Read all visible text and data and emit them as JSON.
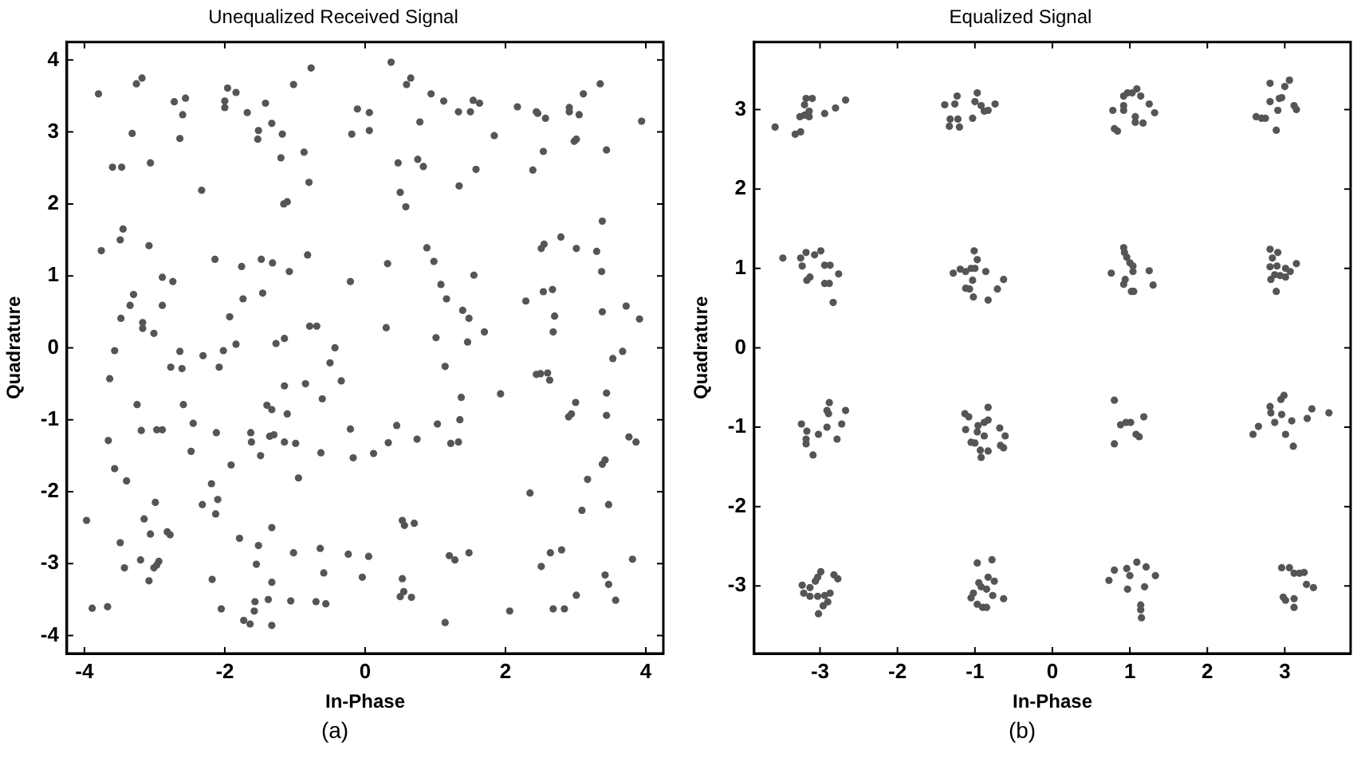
{
  "chart_data": [
    {
      "type": "scatter",
      "title": "Unequalized Received Signal",
      "xlabel": "In-Phase",
      "ylabel": "Quadrature",
      "annotations": [
        "(a)"
      ],
      "xlim": [
        -4.25,
        4.25
      ],
      "ylim": [
        -4.25,
        4.25
      ],
      "xticks": [
        -4,
        -2,
        0,
        2,
        4
      ],
      "yticks": [
        -4,
        -3,
        -2,
        -1,
        0,
        1,
        2,
        3,
        4
      ],
      "grid": false,
      "marker": "circle",
      "series": [
        {
          "color": "#555555",
          "x": [
            -3.8,
            -3.76,
            -3.6,
            -3.47,
            -3.49,
            -3.45,
            -3.48,
            -3.35,
            -3.3,
            -3.32,
            -3.26,
            -3.18,
            -3.17,
            -3.17,
            -3.06,
            -3.08,
            -3.01,
            -2.89,
            -2.89,
            -2.74,
            -2.72,
            -2.64,
            -2.6,
            -2.56,
            -2.33,
            -2.14,
            -2.0,
            -2.0,
            -1.96,
            -1.84,
            -1.93,
            -1.84,
            -1.76,
            -1.74,
            -1.68,
            -1.53,
            -1.52,
            -1.48,
            -1.46,
            -1.42,
            -1.33,
            -1.32,
            -1.27,
            -1.2,
            -1.18,
            -1.16,
            -1.11,
            -1.15,
            -1.08,
            -1.02,
            -0.87,
            -0.82,
            -0.8,
            -0.77,
            -0.79,
            -0.69,
            -0.43,
            -0.21,
            -0.19,
            -0.11,
            0.06,
            0.06,
            0.3,
            0.32,
            0.37,
            0.47,
            0.5,
            0.59,
            0.65,
            0.58,
            0.75,
            0.78,
            0.83,
            0.88,
            0.94,
            0.98,
            1.01,
            1.08,
            1.12,
            1.16,
            1.33,
            1.34,
            1.39,
            1.46,
            1.48,
            1.5,
            1.54,
            1.55,
            1.58,
            1.63,
            1.7,
            1.84,
            2.17,
            2.29,
            2.39,
            2.44,
            2.46,
            2.51,
            2.55,
            2.54,
            2.57,
            2.54,
            2.67,
            2.7,
            2.68,
            2.79,
            2.91,
            2.91,
            2.98,
            3.01,
            3.05,
            3.01,
            3.11,
            3.3,
            3.35,
            3.38,
            3.37,
            3.38,
            3.44,
            3.72,
            3.91,
            3.94,
            -3.57,
            -3.64,
            -2.64,
            -2.61,
            -2.77,
            -2.31,
            -2.08,
            -2.02,
            -3.25,
            -2.59,
            -3.19,
            -2.97,
            -2.89,
            -3.66,
            -3.57,
            -2.45,
            -2.48,
            -2.12,
            -1.91,
            -1.63,
            -1.62,
            -1.49,
            -1.4,
            -1.33,
            -1.36,
            -1.3,
            -1.15,
            -1.11,
            -1.15,
            -0.99,
            -0.85,
            -0.95,
            -0.61,
            -0.63,
            -0.5,
            -0.34,
            -0.21,
            -0.17,
            0.12,
            0.45,
            0.33,
            0.74,
            1.03,
            1.14,
            1.22,
            1.33,
            1.35,
            1.37,
            1.93,
            2.44,
            2.5,
            2.6,
            2.63,
            3.0,
            2.9,
            2.94,
            3.44,
            3.44,
            3.53,
            3.67,
            3.76,
            3.86,
            3.38,
            3.42,
            3.17,
            3.09,
            3.47,
            2.35,
            -3.97,
            -3.4,
            -3.49,
            -3.43,
            -3.89,
            -3.67,
            -3.15,
            -2.99,
            -3.2,
            -3.06,
            -3.08,
            -3.01,
            -2.97,
            -2.94,
            -2.82,
            -2.78,
            -2.32,
            -2.19,
            -2.1,
            -2.13,
            -2.18,
            -2.05,
            -1.79,
            -1.52,
            -1.55,
            -1.33,
            -1.57,
            -1.58,
            -1.73,
            -1.64,
            -1.38,
            -1.33,
            -1.33,
            -1.06,
            -1.02,
            -0.64,
            -0.59,
            -0.7,
            -0.56,
            -0.24,
            -0.04,
            0.05,
            0.53,
            0.56,
            0.7,
            0.53,
            0.55,
            0.5,
            0.66,
            1.2,
            1.28,
            1.48,
            1.14,
            2.06,
            2.51,
            2.64,
            2.8,
            2.68,
            2.84,
            3.01,
            3.42,
            3.47,
            3.57,
            3.81
          ],
          "values": [
            3.53,
            1.35,
            2.51,
            2.51,
            1.5,
            1.65,
            0.41,
            0.59,
            0.74,
            2.98,
            3.67,
            3.75,
            0.35,
            0.27,
            2.57,
            1.42,
            0.2,
            0.98,
            0.59,
            0.92,
            3.42,
            2.91,
            3.24,
            3.47,
            2.19,
            1.23,
            3.43,
            3.34,
            3.61,
            3.55,
            0.43,
            0.05,
            1.13,
            0.68,
            3.27,
            2.9,
            3.02,
            1.23,
            0.76,
            3.4,
            3.12,
            1.18,
            0.06,
            2.64,
            2.97,
            2.0,
            2.03,
            0.13,
            1.06,
            3.66,
            2.72,
            1.29,
            2.3,
            3.89,
            0.3,
            0.3,
            0.0,
            0.92,
            2.97,
            3.32,
            3.27,
            3.02,
            0.28,
            1.17,
            3.97,
            2.57,
            2.16,
            3.66,
            3.75,
            1.96,
            2.62,
            3.14,
            2.52,
            1.39,
            3.53,
            1.2,
            0.14,
            0.88,
            3.43,
            0.68,
            3.28,
            2.25,
            0.52,
            0.08,
            0.41,
            3.28,
            3.44,
            1.01,
            2.48,
            3.4,
            0.22,
            2.95,
            3.35,
            0.65,
            2.47,
            3.28,
            3.26,
            1.38,
            1.44,
            2.73,
            3.19,
            0.78,
            0.81,
            0.44,
            0.22,
            1.54,
            3.34,
            3.28,
            2.87,
            2.9,
            3.24,
            1.38,
            3.53,
            1.34,
            3.67,
            1.76,
            1.06,
            0.5,
            2.75,
            0.58,
            0.4,
            3.15,
            -0.04,
            -0.43,
            -0.05,
            -0.29,
            -0.27,
            -0.11,
            -0.27,
            -0.04,
            -0.79,
            -0.79,
            -1.15,
            -1.14,
            -1.14,
            -1.29,
            -1.68,
            -1.05,
            -1.44,
            -1.18,
            -1.63,
            -1.18,
            -1.31,
            -1.5,
            -0.8,
            -0.86,
            -1.23,
            -1.21,
            -0.53,
            -0.92,
            -1.31,
            -1.33,
            -0.5,
            -1.81,
            -0.71,
            -1.46,
            -0.21,
            -0.46,
            -1.13,
            -1.53,
            -1.47,
            -1.08,
            -1.32,
            -1.27,
            -1.06,
            -0.26,
            -1.33,
            -1.31,
            -1.0,
            -0.69,
            -0.64,
            -0.37,
            -0.36,
            -0.35,
            -0.45,
            -0.76,
            -0.96,
            -0.92,
            -0.63,
            -0.94,
            -0.15,
            -0.05,
            -1.24,
            -1.31,
            -1.62,
            -1.56,
            -1.83,
            -2.26,
            -2.18,
            -2.02,
            -2.4,
            -1.85,
            -2.71,
            -3.06,
            -3.62,
            -3.6,
            -2.38,
            -2.15,
            -2.95,
            -2.59,
            -3.24,
            -3.06,
            -3.02,
            -2.97,
            -2.56,
            -2.6,
            -2.18,
            -1.89,
            -2.11,
            -2.31,
            -3.22,
            -3.63,
            -2.65,
            -2.75,
            -3.01,
            -2.5,
            -3.53,
            -3.66,
            -3.79,
            -3.84,
            -3.5,
            -3.26,
            -3.86,
            -3.52,
            -2.85,
            -2.79,
            -3.13,
            -3.53,
            -3.56,
            -2.87,
            -3.19,
            -2.9,
            -2.4,
            -2.47,
            -2.44,
            -3.21,
            -3.39,
            -3.46,
            -3.47,
            -2.89,
            -2.95,
            -2.85,
            -3.82,
            -3.66,
            -3.04,
            -2.85,
            -2.81,
            -3.63,
            -3.63,
            -3.44,
            -3.16,
            -3.29,
            -3.51,
            -2.94
          ]
        }
      ]
    },
    {
      "type": "scatter",
      "title": "Equalized Signal",
      "xlabel": "In-Phase",
      "ylabel": "Quadrature",
      "annotations": [
        "(b)"
      ],
      "xlim": [
        -3.85,
        3.85
      ],
      "ylim": [
        -3.85,
        3.85
      ],
      "xticks": [
        -3,
        -2,
        -1,
        0,
        1,
        2,
        3
      ],
      "yticks": [
        -3,
        -2,
        -1,
        0,
        1,
        2,
        3
      ],
      "grid": false,
      "marker": "circle",
      "series": [
        {
          "color": "#555555",
          "x": [
            -3.58,
            -3.32,
            -3.25,
            -3.26,
            -3.2,
            -3.14,
            -3.2,
            -3.1,
            -3.18,
            -3.14,
            -2.94,
            -2.8,
            -2.67,
            -1.39,
            -1.33,
            -1.2,
            -1.32,
            -1.22,
            -1.26,
            -1.23,
            -1.03,
            -0.97,
            -1.0,
            -0.88,
            -0.83,
            -0.74,
            -0.92,
            0.8,
            0.84,
            0.78,
            0.92,
            0.92,
            0.97,
            1.09,
            1.03,
            1.14,
            1.25,
            1.32,
            1.07,
            1.07,
            1.17,
            0.92,
            2.63,
            2.7,
            2.75,
            2.81,
            2.81,
            2.89,
            2.93,
            2.96,
            2.91,
            3.0,
            3.06,
            3.12,
            3.15,
            -3.48,
            -3.25,
            -3.18,
            -3.07,
            -2.99,
            -3.23,
            -3.13,
            -3.17,
            -2.94,
            -2.87,
            -2.76,
            -2.94,
            -2.88,
            -2.83,
            -1.28,
            -1.19,
            -1.12,
            -1.01,
            -0.97,
            -1.05,
            -1.0,
            -0.86,
            -1.03,
            -1.12,
            -1.07,
            -1.02,
            -0.83,
            -0.71,
            -0.63,
            0.92,
            0.93,
            0.96,
            1.0,
            1.04,
            1.04,
            0.76,
            0.94,
            0.92,
            1.02,
            1.05,
            1.25,
            1.3,
            2.81,
            2.91,
            2.84,
            2.81,
            2.9,
            3.01,
            3.07,
            3.15,
            2.82,
            2.87,
            2.94,
            3.01,
            2.89,
            -3.24,
            -3.17,
            -3.18,
            -3.18,
            -3.09,
            -3.02,
            -2.91,
            -2.88,
            -2.91,
            -2.89,
            -2.67,
            -2.72,
            -2.78,
            -1.13,
            -1.08,
            -1.12,
            -0.97,
            -0.96,
            -0.88,
            -0.83,
            -0.83,
            -1.05,
            -1.0,
            -0.93,
            -0.92,
            -0.83,
            -0.68,
            -0.61,
            -0.67,
            -0.63,
            -0.88,
            0.8,
            0.8,
            0.88,
            0.95,
            1.01,
            1.08,
            1.12,
            1.18,
            2.59,
            2.66,
            2.81,
            2.82,
            2.87,
            2.96,
            2.99,
            2.95,
            3.01,
            3.09,
            3.11,
            3.29,
            3.35,
            3.57,
            -3.23,
            -3.21,
            -3.13,
            -3.06,
            -2.99,
            -3.03,
            -3.13,
            -3.03,
            -2.94,
            -2.87,
            -2.9,
            -2.96,
            -3.02,
            -2.82,
            -2.77,
            -0.97,
            -0.78,
            -0.83,
            -0.75,
            -0.95,
            -0.92,
            -0.85,
            -0.77,
            -1.02,
            -1.05,
            -0.97,
            -0.9,
            -0.85,
            -0.63,
            0.73,
            0.8,
            0.96,
            1.09,
            1.21,
            1.33,
            1.0,
            0.97,
            1.19,
            1.14,
            1.14,
            1.15,
            2.96,
            3.06,
            3.12,
            3.19,
            3.25,
            3.28,
            3.37,
            2.98,
            3.01,
            3.12,
            3.12
          ],
          "values": [
            2.78,
            2.69,
            2.72,
            2.91,
            2.93,
            2.98,
            3.06,
            3.14,
            3.14,
            2.91,
            2.95,
            3.02,
            3.12,
            3.06,
            2.79,
            2.78,
            2.88,
            2.88,
            3.07,
            3.17,
            2.89,
            3.21,
            3.1,
            2.98,
            2.99,
            3.07,
            3.05,
            2.76,
            2.73,
            2.99,
            2.99,
            3.17,
            3.21,
            3.26,
            3.21,
            3.17,
            3.07,
            2.96,
            2.91,
            2.84,
            2.83,
            3.05,
            2.91,
            2.89,
            2.89,
            3.1,
            3.33,
            2.74,
            3.14,
            3.15,
            2.99,
            3.29,
            3.37,
            3.05,
            3.0,
            1.13,
            1.13,
            1.2,
            1.17,
            1.22,
            1.03,
            0.89,
            0.85,
            1.04,
            1.04,
            0.93,
            0.81,
            0.81,
            0.57,
            0.94,
            0.99,
            0.96,
            1.22,
            1.11,
            1.0,
            1.0,
            0.96,
            0.85,
            0.75,
            0.74,
            0.64,
            0.6,
            0.74,
            0.86,
            1.26,
            1.2,
            1.14,
            1.07,
            1.03,
            0.96,
            0.94,
            0.86,
            0.8,
            0.71,
            0.71,
            0.97,
            0.79,
            1.24,
            1.2,
            1.13,
            1.02,
            1.03,
            1.0,
            0.96,
            1.06,
            0.86,
            0.92,
            0.91,
            0.89,
            0.71,
            -0.96,
            -1.05,
            -1.15,
            -1.21,
            -1.35,
            -1.09,
            -1.0,
            -0.69,
            -0.79,
            -0.83,
            -0.79,
            -0.96,
            -1.15,
            -0.83,
            -0.87,
            -1.03,
            -1.06,
            -0.98,
            -0.94,
            -0.75,
            -0.91,
            -1.19,
            -1.2,
            -1.29,
            -1.38,
            -1.3,
            -1.01,
            -1.11,
            -1.23,
            -1.26,
            -1.11,
            -0.66,
            -1.21,
            -0.97,
            -0.94,
            -0.94,
            -1.09,
            -1.12,
            -0.87,
            -1.09,
            -0.99,
            -0.74,
            -0.82,
            -0.94,
            -0.84,
            -0.6,
            -0.65,
            -1.09,
            -0.92,
            -1.24,
            -0.89,
            -0.77,
            -0.82,
            -2.99,
            -3.09,
            -3.02,
            -2.94,
            -2.82,
            -2.89,
            -3.13,
            -3.13,
            -3.12,
            -3.09,
            -3.2,
            -3.25,
            -3.35,
            -2.86,
            -2.91,
            -2.71,
            -2.67,
            -2.89,
            -2.94,
            -2.96,
            -3.01,
            -3.04,
            -3.12,
            -3.09,
            -3.15,
            -3.23,
            -3.27,
            -3.27,
            -3.16,
            -2.93,
            -2.8,
            -2.78,
            -2.7,
            -2.76,
            -2.87,
            -2.87,
            -3.04,
            -3.01,
            -3.24,
            -3.3,
            -3.4,
            -2.77,
            -2.77,
            -2.84,
            -2.84,
            -2.83,
            -2.98,
            -3.02,
            -3.14,
            -3.18,
            -3.16,
            -3.27
          ]
        }
      ]
    }
  ]
}
